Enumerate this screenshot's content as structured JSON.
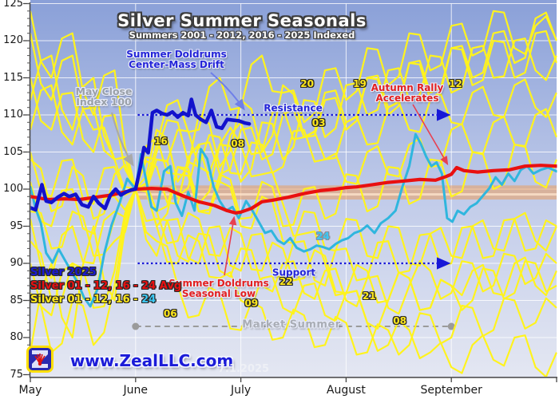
{
  "chart_data": {
    "type": "line",
    "title": "Silver Summer Seasonals",
    "subtitle": "Summers 2001 - 2012, 2016 - 2025 Indexed",
    "x_axis": {
      "months": [
        "May",
        "June",
        "July",
        "August",
        "September"
      ],
      "range_months": [
        0,
        5
      ],
      "grid_months": [
        1,
        2,
        3,
        4
      ]
    },
    "y_axis": {
      "min": 75,
      "max": 125,
      "tick_step": 5,
      "ticks": [
        75,
        80,
        85,
        90,
        95,
        100,
        105,
        110,
        115,
        120,
        125
      ]
    },
    "reference_lines": {
      "resistance": {
        "label": "Resistance",
        "value": 110,
        "t_start": 1.02,
        "t_end": 3.97
      },
      "support": {
        "label": "Support",
        "value": 90,
        "t_start": 1.02,
        "t_end": 3.97
      },
      "market_summer": {
        "label": "Market Summer",
        "value": 81.5,
        "t_start": 1.0,
        "t_end": 4.0
      },
      "center_mass_band": {
        "v_low": 98.6,
        "v_high": 100.5,
        "t_start": 1.02,
        "t_end": 5.0
      }
    },
    "annotations": {
      "may_close": [
        "May Close",
        "Index 100"
      ],
      "center_mass": [
        "Summer Doldrums",
        "Center-Mass Drift"
      ],
      "autumn_rally": [
        "Autumn Rally",
        "Accelerates"
      ],
      "seasonal_low": [
        "Summer Doldrums",
        "Seasonal Low"
      ]
    },
    "year_labels": [
      {
        "text": "20",
        "t": 2.63,
        "v": 114.2
      },
      {
        "text": "19",
        "t": 3.13,
        "v": 114.2
      },
      {
        "text": "12",
        "t": 4.04,
        "v": 114.2
      },
      {
        "text": "03",
        "t": 2.74,
        "v": 108.9
      },
      {
        "text": "16",
        "t": 1.24,
        "v": 106.4
      },
      {
        "text": "08",
        "t": 1.97,
        "v": 106.1
      },
      {
        "text": "22",
        "t": 2.43,
        "v": 87.5
      },
      {
        "text": "09",
        "t": 2.1,
        "v": 84.6
      },
      {
        "text": "06",
        "t": 1.33,
        "v": 83.2
      },
      {
        "text": "21",
        "t": 3.22,
        "v": 85.6
      },
      {
        "text": "08",
        "t": 3.51,
        "v": 82.3
      },
      {
        "text": "24",
        "t": 2.78,
        "v": 93.7,
        "accent": true
      }
    ],
    "series": [
      {
        "name": "Silver 2025",
        "color": "#1212cc",
        "width": 4.5,
        "points": [
          [
            0,
            97.5
          ],
          [
            0.05,
            97.2
          ],
          [
            0.11,
            100.6
          ],
          [
            0.15,
            98.4
          ],
          [
            0.2,
            98.2
          ],
          [
            0.26,
            98.9
          ],
          [
            0.32,
            99.4
          ],
          [
            0.37,
            99.0
          ],
          [
            0.43,
            99.3
          ],
          [
            0.49,
            97.9
          ],
          [
            0.55,
            97.6
          ],
          [
            0.6,
            99.0
          ],
          [
            0.65,
            98.1
          ],
          [
            0.71,
            97.4
          ],
          [
            0.76,
            99.2
          ],
          [
            0.81,
            100.0
          ],
          [
            0.86,
            99.2
          ],
          [
            0.91,
            99.6
          ],
          [
            0.96,
            99.9
          ],
          [
            1.0,
            100.0
          ],
          [
            1.04,
            102.6
          ],
          [
            1.08,
            105.6
          ],
          [
            1.12,
            104.9
          ],
          [
            1.16,
            110.3
          ],
          [
            1.2,
            110.6
          ],
          [
            1.25,
            110.2
          ],
          [
            1.3,
            110.0
          ],
          [
            1.35,
            110.4
          ],
          [
            1.4,
            109.7
          ],
          [
            1.45,
            110.3
          ],
          [
            1.5,
            109.9
          ],
          [
            1.53,
            112.1
          ],
          [
            1.57,
            110.0
          ],
          [
            1.62,
            109.4
          ],
          [
            1.67,
            109.0
          ],
          [
            1.72,
            110.6
          ],
          [
            1.77,
            108.4
          ],
          [
            1.82,
            108.2
          ],
          [
            1.87,
            109.4
          ],
          [
            1.92,
            109.3
          ],
          [
            1.98,
            109.2
          ],
          [
            2.04,
            108.9
          ],
          [
            2.08,
            108.8
          ]
        ]
      },
      {
        "name": "Silver 01 - 12, 16 - 24 Avg",
        "color": "#e91010",
        "width": 4.2,
        "points": [
          [
            0,
            99.0
          ],
          [
            0.17,
            98.6
          ],
          [
            0.33,
            98.7
          ],
          [
            0.47,
            98.6
          ],
          [
            0.62,
            98.9
          ],
          [
            0.77,
            99.2
          ],
          [
            0.92,
            99.7
          ],
          [
            1.0,
            100.0
          ],
          [
            1.15,
            100.1
          ],
          [
            1.3,
            100.0
          ],
          [
            1.45,
            99.1
          ],
          [
            1.6,
            98.3
          ],
          [
            1.75,
            97.8
          ],
          [
            1.87,
            97.1
          ],
          [
            1.95,
            96.8
          ],
          [
            2.0,
            96.9
          ],
          [
            2.1,
            97.4
          ],
          [
            2.2,
            98.3
          ],
          [
            2.3,
            98.5
          ],
          [
            2.45,
            98.9
          ],
          [
            2.6,
            99.4
          ],
          [
            2.75,
            99.8
          ],
          [
            2.9,
            100.0
          ],
          [
            3.0,
            100.2
          ],
          [
            3.1,
            100.3
          ],
          [
            3.25,
            100.6
          ],
          [
            3.4,
            100.9
          ],
          [
            3.55,
            101.1
          ],
          [
            3.7,
            101.3
          ],
          [
            3.85,
            101.2
          ],
          [
            3.95,
            101.7
          ],
          [
            4.0,
            102.0
          ],
          [
            4.05,
            102.9
          ],
          [
            4.12,
            102.5
          ],
          [
            4.25,
            102.3
          ],
          [
            4.4,
            102.5
          ],
          [
            4.55,
            102.6
          ],
          [
            4.7,
            103.1
          ],
          [
            4.85,
            103.2
          ],
          [
            5.0,
            103.1
          ]
        ]
      },
      {
        "name": "Silver 24",
        "color": "#2fb6de",
        "width": 3,
        "points": [
          [
            0,
            100.3
          ],
          [
            0.05,
            97.4
          ],
          [
            0.1,
            95.4
          ],
          [
            0.15,
            91.4
          ],
          [
            0.21,
            90.1
          ],
          [
            0.27,
            91.9
          ],
          [
            0.33,
            90.4
          ],
          [
            0.39,
            88.9
          ],
          [
            0.45,
            87.4
          ],
          [
            0.51,
            85.4
          ],
          [
            0.57,
            84.2
          ],
          [
            0.64,
            86.6
          ],
          [
            0.7,
            91.2
          ],
          [
            0.77,
            95.1
          ],
          [
            0.85,
            98.2
          ],
          [
            0.92,
            101.4
          ],
          [
            1.0,
            100.0
          ],
          [
            1.05,
            104.7
          ],
          [
            1.1,
            101.2
          ],
          [
            1.15,
            97.6
          ],
          [
            1.2,
            97.1
          ],
          [
            1.27,
            102.4
          ],
          [
            1.33,
            103.1
          ],
          [
            1.38,
            98.2
          ],
          [
            1.44,
            96.4
          ],
          [
            1.5,
            99.6
          ],
          [
            1.56,
            97.1
          ],
          [
            1.62,
            105.4
          ],
          [
            1.68,
            104.1
          ],
          [
            1.74,
            100.4
          ],
          [
            1.8,
            98.4
          ],
          [
            1.86,
            97.1
          ],
          [
            1.92,
            97.6
          ],
          [
            1.98,
            96.1
          ],
          [
            2.05,
            98.4
          ],
          [
            2.11,
            97.1
          ],
          [
            2.17,
            95.6
          ],
          [
            2.23,
            94.1
          ],
          [
            2.29,
            94.4
          ],
          [
            2.35,
            93.1
          ],
          [
            2.41,
            92.6
          ],
          [
            2.47,
            93.4
          ],
          [
            2.53,
            92.1
          ],
          [
            2.6,
            91.6
          ],
          [
            2.66,
            91.9
          ],
          [
            2.72,
            92.4
          ],
          [
            2.78,
            92.2
          ],
          [
            2.84,
            91.9
          ],
          [
            2.9,
            92.6
          ],
          [
            2.96,
            93.1
          ],
          [
            3.02,
            93.4
          ],
          [
            3.08,
            94.1
          ],
          [
            3.14,
            94.4
          ],
          [
            3.2,
            95.1
          ],
          [
            3.27,
            94.1
          ],
          [
            3.33,
            95.4
          ],
          [
            3.4,
            96.1
          ],
          [
            3.47,
            97.1
          ],
          [
            3.53,
            100.1
          ],
          [
            3.6,
            103.1
          ],
          [
            3.66,
            107.4
          ],
          [
            3.71,
            106.1
          ],
          [
            3.76,
            104.4
          ],
          [
            3.81,
            103.1
          ],
          [
            3.86,
            103.6
          ],
          [
            3.91,
            102.1
          ],
          [
            3.96,
            96.1
          ],
          [
            4.01,
            95.6
          ],
          [
            4.06,
            97.1
          ],
          [
            4.12,
            96.6
          ],
          [
            4.18,
            97.6
          ],
          [
            4.24,
            98.1
          ],
          [
            4.3,
            99.1
          ],
          [
            4.36,
            100.1
          ],
          [
            4.42,
            101.6
          ],
          [
            4.48,
            100.6
          ],
          [
            4.54,
            102.1
          ],
          [
            4.6,
            101.1
          ],
          [
            4.66,
            102.6
          ],
          [
            4.72,
            103.1
          ],
          [
            4.78,
            102.1
          ],
          [
            4.85,
            102.6
          ],
          [
            4.92,
            102.9
          ],
          [
            5.0,
            102.4
          ]
        ]
      }
    ],
    "background_years": {
      "color": "#fff31e",
      "width": 2.2,
      "t_start": 0,
      "t_step": 0.2,
      "lines": [
        [
          112,
          118,
          108,
          115,
          104,
          100,
          106,
          112,
          108,
          115,
          111,
          118,
          113,
          109,
          116,
          112,
          119,
          114,
          121,
          116,
          122,
          118,
          124,
          119,
          122,
          120
        ],
        [
          96,
          88,
          95,
          90,
          97,
          100,
          95,
          103,
          98,
          106,
          101,
          109,
          104,
          112,
          107,
          114,
          110,
          116,
          112,
          118,
          113,
          119,
          115,
          120,
          116,
          118
        ],
        [
          104,
          97,
          103,
          96,
          102,
          100,
          104,
          99,
          106,
          102,
          108,
          104,
          110,
          107,
          113,
          109,
          115,
          111,
          117,
          113,
          119,
          115,
          121,
          117,
          123,
          120
        ],
        [
          90,
          83,
          90,
          85,
          93,
          100,
          103,
          98,
          106,
          101,
          109,
          105,
          111,
          107,
          104,
          109,
          106,
          111,
          108,
          112,
          109,
          113,
          110,
          114,
          111,
          113
        ],
        [
          108,
          114,
          106,
          111,
          104,
          100,
          105,
          109,
          103,
          107,
          102,
          106,
          103,
          108,
          104,
          101,
          105,
          102,
          106,
          103,
          108,
          105,
          109,
          106,
          110,
          107
        ],
        [
          121,
          112,
          118,
          108,
          104,
          100,
          104,
          108,
          103,
          106,
          106,
          102,
          98,
          94,
          90,
          86,
          82,
          79,
          81,
          78,
          76,
          79,
          77,
          80,
          76,
          78
        ],
        [
          97,
          92,
          97,
          91,
          96,
          100,
          96,
          91,
          94,
          89,
          92,
          87,
          90,
          86,
          89,
          85,
          88,
          84,
          87,
          89,
          86,
          90,
          87,
          91,
          88,
          90
        ],
        [
          105,
          99,
          104,
          98,
          103,
          100,
          95,
          90,
          93,
          88,
          85,
          88,
          84,
          87,
          83,
          86,
          82,
          85,
          88,
          84,
          87,
          85,
          89,
          86,
          90,
          87
        ],
        [
          93,
          85,
          90,
          84,
          89,
          100,
          93,
          87,
          83,
          86,
          81,
          84,
          80,
          83,
          79,
          82,
          78,
          81,
          79,
          83,
          80,
          84,
          81,
          85,
          82,
          84
        ],
        [
          101,
          95,
          100,
          94,
          99,
          100,
          97,
          93,
          96,
          91,
          94,
          89,
          92,
          88,
          91,
          86,
          89,
          85,
          88,
          84,
          87,
          89,
          86,
          90,
          87,
          89
        ],
        [
          78,
          90,
          80,
          95,
          85,
          100,
          108,
          101,
          110,
          103,
          112,
          105,
          114,
          107,
          112,
          108,
          115,
          110,
          117,
          112,
          119,
          114,
          120,
          115,
          121,
          117
        ],
        [
          124,
          115,
          121,
          110,
          116,
          100,
          97,
          103,
          97,
          102,
          96,
          101,
          95,
          100,
          96,
          102,
          97,
          103,
          98,
          104,
          99,
          105,
          100,
          106,
          101,
          104
        ],
        [
          86,
          78,
          85,
          79,
          87,
          100,
          91,
          96,
          90,
          95,
          89,
          94,
          88,
          93,
          87,
          92,
          88,
          93,
          89,
          94,
          90,
          95,
          91,
          96,
          92,
          95
        ],
        [
          115,
          108,
          113,
          105,
          110,
          100,
          107,
          102,
          97,
          101,
          95,
          99,
          93,
          97,
          92,
          96,
          91,
          95,
          90,
          94,
          91,
          95,
          92,
          96,
          93,
          95
        ]
      ]
    }
  },
  "legend": {
    "line1": "Silver 2025",
    "line2": "Silver 01 - 12, 16 - 24 Avg",
    "line3_main": "Silver 01 - 12, 16 - ",
    "line3_accent": "24"
  },
  "watermark": {
    "url": "www.ZealLLC.com",
    "date": "7.1.2025"
  },
  "colors": {
    "background_top": "#8aa0d8",
    "background_bottom": "#e4e7f2",
    "silver_2025": "#1212cc",
    "average": "#e91010",
    "silver_2024": "#2fb6de",
    "years": "#fff31e",
    "reference": "#1818d8",
    "band": "#f09a50",
    "market_summer_line": "#9b9b9b"
  }
}
